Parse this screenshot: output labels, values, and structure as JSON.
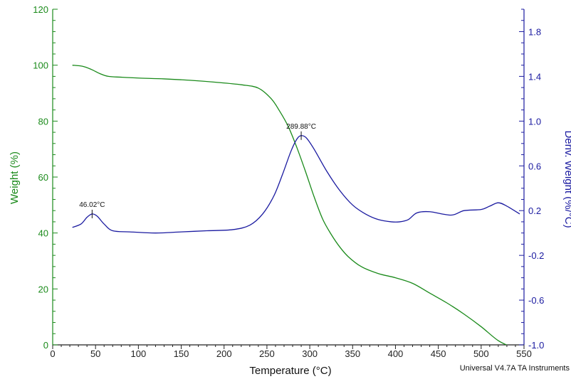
{
  "chart_data": {
    "type": "line",
    "xlabel": "Temperature (°C)",
    "ylabel_left": "Weight (%)",
    "ylabel_right": "Deriv. Weight (%/°C)",
    "xlim": [
      0,
      550
    ],
    "ylim_left": [
      0,
      120
    ],
    "ylim_right": [
      -1.0,
      2.0
    ],
    "x_ticks": [
      "0",
      "50",
      "100",
      "150",
      "200",
      "250",
      "300",
      "350",
      "400",
      "450",
      "500",
      "550"
    ],
    "y_left_ticks": [
      "0",
      "20",
      "40",
      "60",
      "80",
      "100",
      "120"
    ],
    "y_right_ticks": [
      "-1.0",
      "-0.6",
      "-0.2",
      "0.2",
      "0.6",
      "1.0",
      "1.4",
      "1.8"
    ],
    "grid": false,
    "colors": {
      "weight": "#1a8a1a",
      "deriv": "#1a1aa0",
      "axis_x": "#222222"
    },
    "series": [
      {
        "axis": "left",
        "color": "#1a8a1a",
        "x": [
          23,
          35,
          45,
          55,
          65,
          80,
          100,
          130,
          160,
          190,
          220,
          240,
          255,
          265,
          275,
          285,
          295,
          305,
          315,
          325,
          335,
          345,
          360,
          380,
          400,
          420,
          440,
          460,
          480,
          500,
          520,
          537
        ],
        "values": [
          100,
          99.6,
          98.5,
          97,
          96,
          95.7,
          95.4,
          95.1,
          94.6,
          93.9,
          93,
          91.8,
          88,
          83.5,
          78,
          70.5,
          62,
          53,
          45,
          39.5,
          35,
          31.5,
          28,
          25.5,
          24,
          22,
          18.5,
          15,
          11,
          6.5,
          1.5,
          -1
        ]
      },
      {
        "axis": "right",
        "color": "#1a1aa0",
        "x": [
          23,
          33,
          40,
          46,
          52,
          60,
          70,
          90,
          120,
          150,
          180,
          210,
          230,
          245,
          258,
          268,
          278,
          285,
          290,
          296,
          305,
          320,
          335,
          350,
          365,
          380,
          395,
          405,
          415,
          425,
          440,
          465,
          480,
          500,
          510,
          520,
          530,
          545
        ],
        "values": [
          0.05,
          0.08,
          0.14,
          0.17,
          0.15,
          0.08,
          0.02,
          0.01,
          0.0,
          0.01,
          0.02,
          0.03,
          0.07,
          0.17,
          0.33,
          0.52,
          0.73,
          0.84,
          0.87,
          0.85,
          0.75,
          0.55,
          0.38,
          0.25,
          0.17,
          0.12,
          0.1,
          0.1,
          0.12,
          0.18,
          0.19,
          0.16,
          0.2,
          0.21,
          0.24,
          0.27,
          0.24,
          0.17
        ]
      }
    ],
    "annotations": [
      {
        "label": "46.02°C",
        "x": 46,
        "y": 0.17,
        "axis": "right"
      },
      {
        "label": "289.88°C",
        "x": 290,
        "y": 0.87,
        "axis": "right"
      }
    ]
  },
  "footer": "Universal V4.7A TA Instruments"
}
